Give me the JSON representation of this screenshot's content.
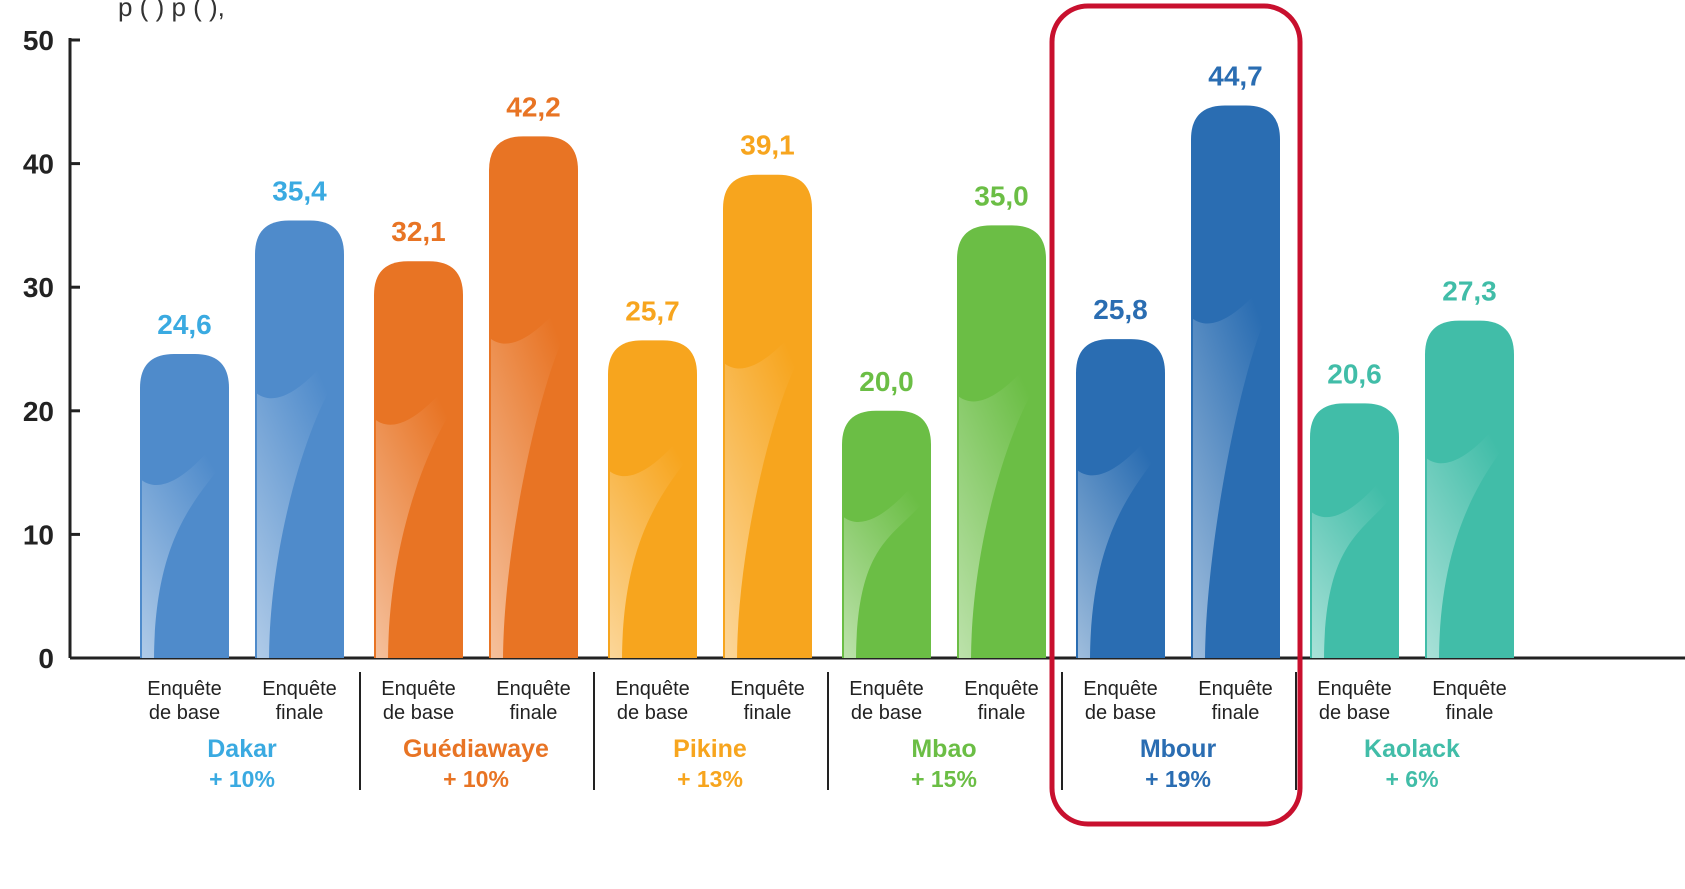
{
  "chart_data": {
    "type": "bar",
    "title": "",
    "caption_visible_fragment": "p                    (     )          p                    (     ),",
    "xlabel": "",
    "ylabel": "",
    "ylim": [
      0,
      50
    ],
    "yticks": [
      0,
      10,
      20,
      30,
      40,
      50
    ],
    "grid": false,
    "bar_labels": [
      "Enquête\nde base",
      "Enquête\nfinale"
    ],
    "groups": [
      {
        "name": "Dakar",
        "change": "+ 10%",
        "color": "#4F8BCB",
        "label_color": "#3AAAE1",
        "values": [
          24.6,
          35.4
        ],
        "value_labels": [
          "24,6",
          "35,4"
        ]
      },
      {
        "name": "Guédiawaye",
        "change": "+ 10%",
        "color": "#E87424",
        "label_color": "#E87424",
        "values": [
          32.1,
          42.2
        ],
        "value_labels": [
          "32,1",
          "42,2"
        ]
      },
      {
        "name": "Pikine",
        "change": "+ 13%",
        "color": "#F7A51E",
        "label_color": "#F7A51E",
        "values": [
          25.7,
          39.1
        ],
        "value_labels": [
          "25,7",
          "39,1"
        ]
      },
      {
        "name": "Mbao",
        "change": "+ 15%",
        "color": "#6BBE45",
        "label_color": "#6BBE45",
        "values": [
          20.0,
          35.0
        ],
        "value_labels": [
          "20,0",
          "35,0"
        ]
      },
      {
        "name": "Mbour",
        "change": "+ 19%",
        "color": "#2A6DB2",
        "label_color": "#2A6DB2",
        "values": [
          25.8,
          44.7
        ],
        "value_labels": [
          "25,8",
          "44,7"
        ],
        "highlighted": true
      },
      {
        "name": "Kaolack",
        "change": "+ 6%",
        "color": "#41BDA8",
        "label_color": "#41BDA8",
        "values": [
          20.6,
          27.3
        ],
        "value_labels": [
          "20,6",
          "27,3"
        ]
      }
    ],
    "highlight_color": "#C8102E"
  }
}
